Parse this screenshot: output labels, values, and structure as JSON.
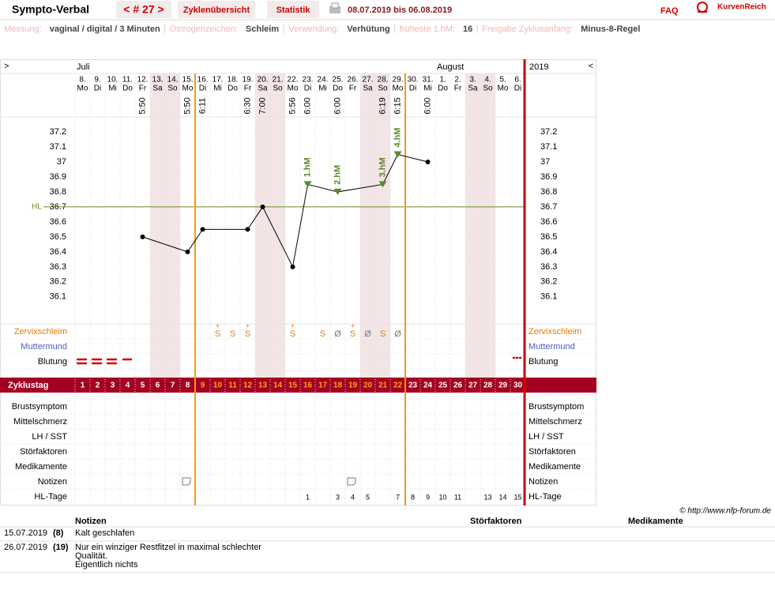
{
  "header": {
    "title": "Sympto-Verbal",
    "cycle_nav": "< # 27 >",
    "tabs": [
      "Zyklenübersicht",
      "Statistik"
    ],
    "period": "08.07.2019 bis 06.08.2019",
    "faq": "FAQ",
    "logo": "KurvenReich"
  },
  "settings": [
    {
      "label": "Messung:",
      "value": "vaginal / digital / 3 Minuten"
    },
    {
      "label": "Östrogenzeichen:",
      "value": "Schleim"
    },
    {
      "label": "Verwendung:",
      "value": "Verhütung"
    },
    {
      "label": "früheste 1.hM:",
      "value": 16
    },
    {
      "label": "Freigabe Zyklusanfang:",
      "value": "Minus-8-Regel"
    }
  ],
  "chart_data": {
    "type": "line",
    "nav_prev": ">",
    "nav_next": "<",
    "year": "2019",
    "months": [
      {
        "label": "Juli",
        "day": 1
      },
      {
        "label": "August",
        "day": 25
      }
    ],
    "dates": [
      "8.",
      "9.",
      "10.",
      "11.",
      "12.",
      "13.",
      "14.",
      "15.",
      "16.",
      "17.",
      "18.",
      "19.",
      "20.",
      "21.",
      "22.",
      "23.",
      "24.",
      "25.",
      "26.",
      "27.",
      "28.",
      "29.",
      "30.",
      "31.",
      "1.",
      "2.",
      "3.",
      "4.",
      "5.",
      "6."
    ],
    "weekdays": [
      "Mo",
      "Di",
      "Mi",
      "Do",
      "Fr",
      "Sa",
      "So",
      "Mo",
      "Di",
      "Mi",
      "Do",
      "Fr",
      "Sa",
      "So",
      "Mo",
      "Di",
      "Mi",
      "Do",
      "Fr",
      "Sa",
      "So",
      "Mo",
      "Di",
      "Mi",
      "Do",
      "Fr",
      "Sa",
      "So",
      "Mo",
      "Di"
    ],
    "times": [
      null,
      null,
      null,
      null,
      "5:50",
      null,
      null,
      "5:50",
      "6:11",
      null,
      null,
      "6:30",
      "7:00",
      null,
      "5:56",
      "6:00",
      null,
      "6:00",
      null,
      null,
      "6:19",
      "6:15",
      null,
      "6:00",
      null,
      null,
      null,
      null,
      null,
      null
    ],
    "x": [
      5,
      8,
      9,
      12,
      13,
      15,
      16,
      18,
      21,
      22,
      24
    ],
    "values": [
      36.5,
      36.4,
      36.55,
      36.55,
      36.7,
      36.3,
      36.85,
      36.8,
      36.85,
      37.05,
      37.0
    ],
    "color": "#000000",
    "xlim": [
      0.5,
      30.5
    ],
    "ylim": [
      35.92,
      37.3
    ],
    "yticks": [
      37.2,
      37.1,
      37,
      36.9,
      36.8,
      36.7,
      36.6,
      36.5,
      36.4,
      36.3,
      36.2,
      36.1
    ],
    "hl": {
      "label": "HL",
      "value": 36.7,
      "color": "#6b8e23"
    },
    "hm_markers": [
      {
        "x": 16,
        "label": "1.hM"
      },
      {
        "x": 18,
        "label": "2.hM"
      },
      {
        "x": 21,
        "label": "3.hM"
      },
      {
        "x": 22,
        "label": "4.hM"
      }
    ],
    "hm_color": "#5a8a2a",
    "fertile_days": [
      9,
      22
    ],
    "rows_top": [
      "Zervixschleim",
      "Muttermund",
      "Blutung"
    ],
    "rows_bottom": [
      "Brustsymptom",
      "Mittelschmerz",
      "LH / SST",
      "Störfaktoren",
      "Medikamente",
      "Notizen",
      "HL-Tage"
    ],
    "zervix": [
      null,
      null,
      null,
      null,
      null,
      null,
      null,
      null,
      null,
      "S",
      "S",
      "S",
      null,
      null,
      "S",
      null,
      "S",
      "Ø",
      "S",
      "Ø",
      "S",
      "Ø",
      null,
      null,
      null,
      null,
      null,
      null,
      null,
      null
    ],
    "zervix_plus": [
      null,
      null,
      null,
      null,
      null,
      null,
      null,
      null,
      null,
      "+",
      null,
      "+",
      null,
      null,
      "+",
      null,
      null,
      null,
      "+",
      null,
      null,
      null,
      null,
      null,
      null,
      null,
      null,
      null,
      null,
      null
    ],
    "cycle_label": "Zyklustag",
    "cycle_days": [
      1,
      2,
      3,
      4,
      5,
      6,
      7,
      8,
      9,
      10,
      11,
      12,
      13,
      14,
      15,
      16,
      17,
      18,
      19,
      20,
      21,
      22,
      23,
      24,
      25,
      26,
      27,
      28,
      29,
      30
    ],
    "hl_days": [
      null,
      null,
      null,
      null,
      null,
      null,
      null,
      null,
      null,
      null,
      null,
      null,
      null,
      null,
      null,
      1,
      null,
      3,
      4,
      5,
      null,
      7,
      8,
      9,
      10,
      11,
      null,
      13,
      14,
      15
    ]
  },
  "credit": "© http://www.nfp-forum.de",
  "notes_table": {
    "columns": [
      "Notizen",
      "Störfaktoren",
      "Medikamente"
    ],
    "rows": [
      {
        "date": "15.07.2019",
        "day": "(8)",
        "lines": [
          "Kalt geschlafen"
        ]
      },
      {
        "date": "26.07.2019",
        "day": "(19)",
        "lines": [
          "Nur ein winziger Restfitzel in maximal schlechter",
          "Qualität.",
          "Eigentlich nichts"
        ]
      }
    ]
  }
}
